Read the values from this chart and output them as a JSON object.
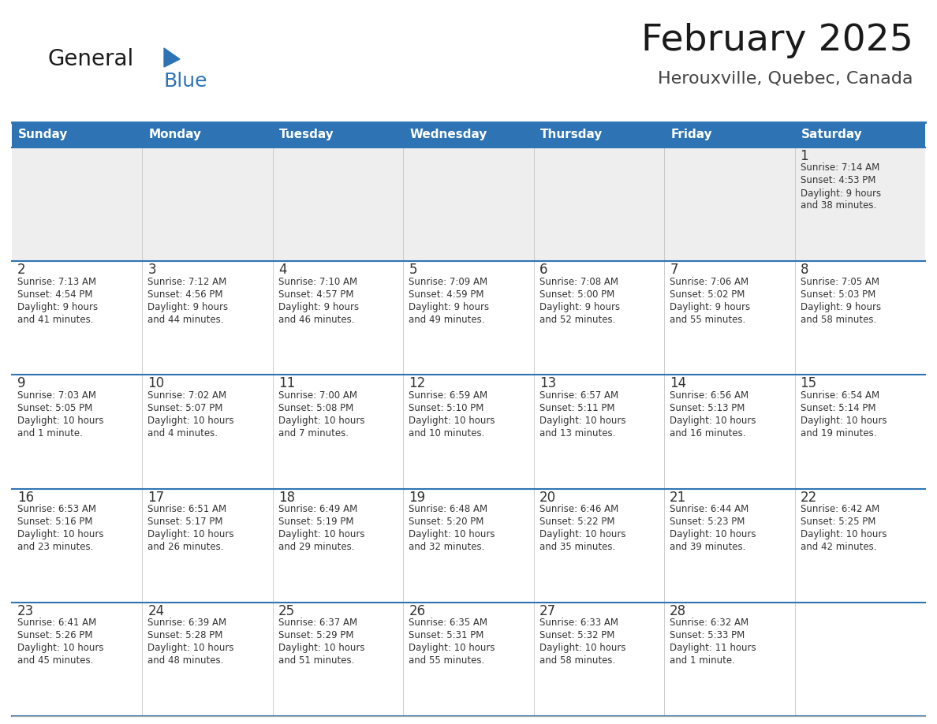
{
  "title": "February 2025",
  "subtitle": "Herouxville, Quebec, Canada",
  "days_of_week": [
    "Sunday",
    "Monday",
    "Tuesday",
    "Wednesday",
    "Thursday",
    "Friday",
    "Saturday"
  ],
  "header_bg_color": "#2E74B5",
  "header_text_color": "#FFFFFF",
  "cell_bg_color": "#FFFFFF",
  "row0_bg_color": "#EEEEEE",
  "grid_line_color": "#2E74B5",
  "day_number_color": "#333333",
  "cell_text_color": "#333333",
  "title_color": "#1A1A1A",
  "subtitle_color": "#444444",
  "logo_general_color": "#1A1A1A",
  "logo_blue_color": "#2E74B5",
  "calendar_data": [
    {
      "day": 1,
      "col": 6,
      "row": 0,
      "sunrise": "7:14 AM",
      "sunset": "4:53 PM",
      "daylight": "9 hours and 38 minutes."
    },
    {
      "day": 2,
      "col": 0,
      "row": 1,
      "sunrise": "7:13 AM",
      "sunset": "4:54 PM",
      "daylight": "9 hours and 41 minutes."
    },
    {
      "day": 3,
      "col": 1,
      "row": 1,
      "sunrise": "7:12 AM",
      "sunset": "4:56 PM",
      "daylight": "9 hours and 44 minutes."
    },
    {
      "day": 4,
      "col": 2,
      "row": 1,
      "sunrise": "7:10 AM",
      "sunset": "4:57 PM",
      "daylight": "9 hours and 46 minutes."
    },
    {
      "day": 5,
      "col": 3,
      "row": 1,
      "sunrise": "7:09 AM",
      "sunset": "4:59 PM",
      "daylight": "9 hours and 49 minutes."
    },
    {
      "day": 6,
      "col": 4,
      "row": 1,
      "sunrise": "7:08 AM",
      "sunset": "5:00 PM",
      "daylight": "9 hours and 52 minutes."
    },
    {
      "day": 7,
      "col": 5,
      "row": 1,
      "sunrise": "7:06 AM",
      "sunset": "5:02 PM",
      "daylight": "9 hours and 55 minutes."
    },
    {
      "day": 8,
      "col": 6,
      "row": 1,
      "sunrise": "7:05 AM",
      "sunset": "5:03 PM",
      "daylight": "9 hours and 58 minutes."
    },
    {
      "day": 9,
      "col": 0,
      "row": 2,
      "sunrise": "7:03 AM",
      "sunset": "5:05 PM",
      "daylight": "10 hours and 1 minute."
    },
    {
      "day": 10,
      "col": 1,
      "row": 2,
      "sunrise": "7:02 AM",
      "sunset": "5:07 PM",
      "daylight": "10 hours and 4 minutes."
    },
    {
      "day": 11,
      "col": 2,
      "row": 2,
      "sunrise": "7:00 AM",
      "sunset": "5:08 PM",
      "daylight": "10 hours and 7 minutes."
    },
    {
      "day": 12,
      "col": 3,
      "row": 2,
      "sunrise": "6:59 AM",
      "sunset": "5:10 PM",
      "daylight": "10 hours and 10 minutes."
    },
    {
      "day": 13,
      "col": 4,
      "row": 2,
      "sunrise": "6:57 AM",
      "sunset": "5:11 PM",
      "daylight": "10 hours and 13 minutes."
    },
    {
      "day": 14,
      "col": 5,
      "row": 2,
      "sunrise": "6:56 AM",
      "sunset": "5:13 PM",
      "daylight": "10 hours and 16 minutes."
    },
    {
      "day": 15,
      "col": 6,
      "row": 2,
      "sunrise": "6:54 AM",
      "sunset": "5:14 PM",
      "daylight": "10 hours and 19 minutes."
    },
    {
      "day": 16,
      "col": 0,
      "row": 3,
      "sunrise": "6:53 AM",
      "sunset": "5:16 PM",
      "daylight": "10 hours and 23 minutes."
    },
    {
      "day": 17,
      "col": 1,
      "row": 3,
      "sunrise": "6:51 AM",
      "sunset": "5:17 PM",
      "daylight": "10 hours and 26 minutes."
    },
    {
      "day": 18,
      "col": 2,
      "row": 3,
      "sunrise": "6:49 AM",
      "sunset": "5:19 PM",
      "daylight": "10 hours and 29 minutes."
    },
    {
      "day": 19,
      "col": 3,
      "row": 3,
      "sunrise": "6:48 AM",
      "sunset": "5:20 PM",
      "daylight": "10 hours and 32 minutes."
    },
    {
      "day": 20,
      "col": 4,
      "row": 3,
      "sunrise": "6:46 AM",
      "sunset": "5:22 PM",
      "daylight": "10 hours and 35 minutes."
    },
    {
      "day": 21,
      "col": 5,
      "row": 3,
      "sunrise": "6:44 AM",
      "sunset": "5:23 PM",
      "daylight": "10 hours and 39 minutes."
    },
    {
      "day": 22,
      "col": 6,
      "row": 3,
      "sunrise": "6:42 AM",
      "sunset": "5:25 PM",
      "daylight": "10 hours and 42 minutes."
    },
    {
      "day": 23,
      "col": 0,
      "row": 4,
      "sunrise": "6:41 AM",
      "sunset": "5:26 PM",
      "daylight": "10 hours and 45 minutes."
    },
    {
      "day": 24,
      "col": 1,
      "row": 4,
      "sunrise": "6:39 AM",
      "sunset": "5:28 PM",
      "daylight": "10 hours and 48 minutes."
    },
    {
      "day": 25,
      "col": 2,
      "row": 4,
      "sunrise": "6:37 AM",
      "sunset": "5:29 PM",
      "daylight": "10 hours and 51 minutes."
    },
    {
      "day": 26,
      "col": 3,
      "row": 4,
      "sunrise": "6:35 AM",
      "sunset": "5:31 PM",
      "daylight": "10 hours and 55 minutes."
    },
    {
      "day": 27,
      "col": 4,
      "row": 4,
      "sunrise": "6:33 AM",
      "sunset": "5:32 PM",
      "daylight": "10 hours and 58 minutes."
    },
    {
      "day": 28,
      "col": 5,
      "row": 4,
      "sunrise": "6:32 AM",
      "sunset": "5:33 PM",
      "daylight": "11 hours and 1 minute."
    }
  ],
  "num_rows": 5,
  "num_cols": 7,
  "fig_width": 11.88,
  "fig_height": 9.18,
  "dpi": 100,
  "header_font_size": 11,
  "day_num_font_size": 12,
  "cell_font_size": 8.5,
  "title_font_size": 34,
  "subtitle_font_size": 16
}
